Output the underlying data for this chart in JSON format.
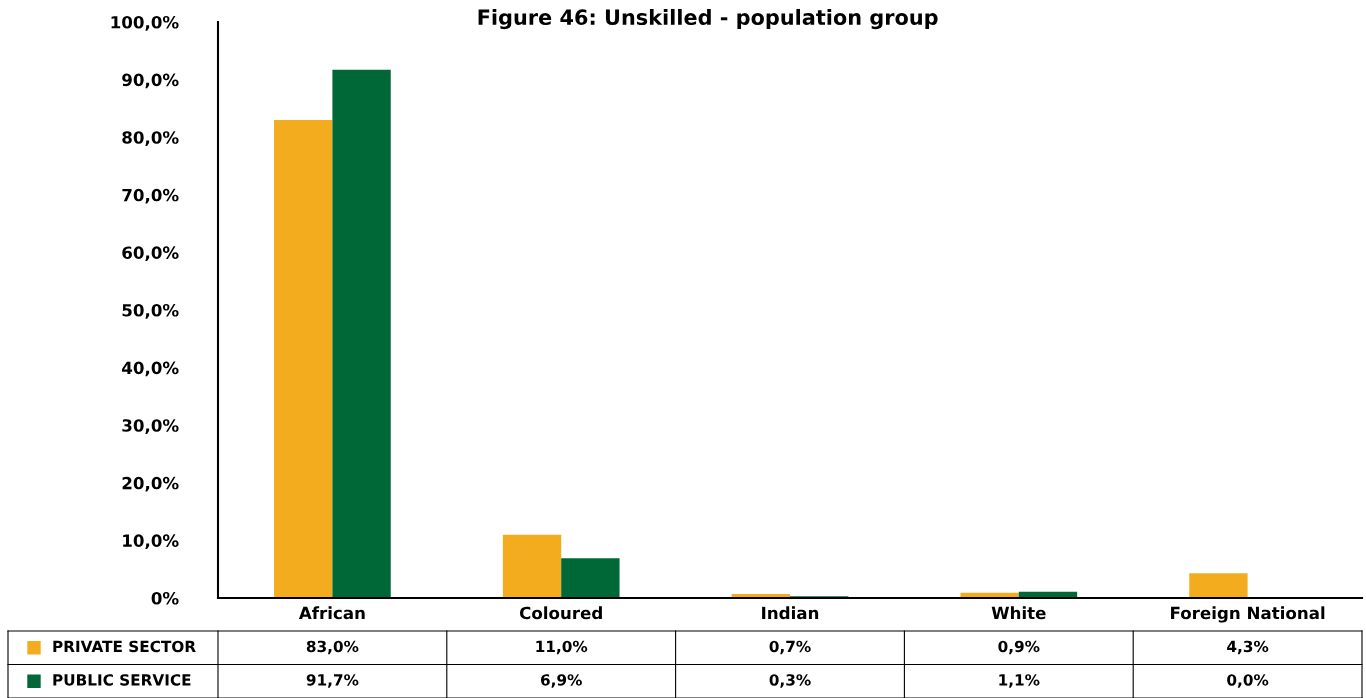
{
  "chart_data": {
    "type": "bar",
    "title": "Figure 46: Unskilled - population group",
    "categories": [
      "African",
      "Coloured",
      "Indian",
      "White",
      "Foreign National"
    ],
    "series": [
      {
        "name": "PRIVATE SECTOR",
        "color": "#f4ac1f",
        "values": [
          83.0,
          11.0,
          0.7,
          0.9,
          4.3
        ],
        "value_labels": [
          "83,0%",
          "11,0%",
          "0,7%",
          "0,9%",
          "4,3%"
        ]
      },
      {
        "name": "PUBLIC SERVICE",
        "color": "#006837",
        "values": [
          91.7,
          6.9,
          0.3,
          1.1,
          0.0
        ],
        "value_labels": [
          "91,7%",
          "6,9%",
          "0,3%",
          "1,1%",
          "0,0%"
        ]
      }
    ],
    "ylim": [
      0,
      100
    ],
    "yticks": [
      {
        "value": 0,
        "label": "0%"
      },
      {
        "value": 10,
        "label": "10,0%"
      },
      {
        "value": 20,
        "label": "20,0%"
      },
      {
        "value": 30,
        "label": "30,0%"
      },
      {
        "value": 40,
        "label": "40,0%"
      },
      {
        "value": 50,
        "label": "50,0%"
      },
      {
        "value": 60,
        "label": "60,0%"
      },
      {
        "value": 70,
        "label": "70,0%"
      },
      {
        "value": 80,
        "label": "80,0%"
      },
      {
        "value": 90,
        "label": "90,0%"
      },
      {
        "value": 100,
        "label": "100,0%"
      }
    ],
    "grid": false,
    "legend": "bottom"
  }
}
